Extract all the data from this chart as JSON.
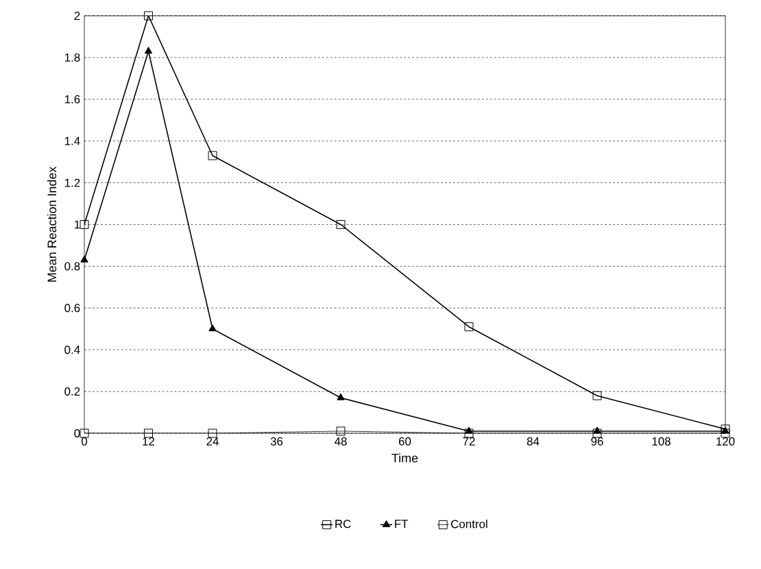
{
  "chart_data": {
    "type": "line",
    "xlabel": "Time",
    "ylabel": "Mean Reaction Index",
    "x": [
      0,
      12,
      24,
      48,
      72,
      96,
      120
    ],
    "series": [
      {
        "name": "RC",
        "color": "#000000",
        "marker": "square",
        "values": [
          1.0,
          2.0,
          1.33,
          1.0,
          0.51,
          0.18,
          0.02
        ]
      },
      {
        "name": "FT",
        "color": "#000000",
        "marker": "triangle",
        "values": [
          0.83,
          1.83,
          0.5,
          0.17,
          0.01,
          0.01,
          0.01
        ]
      },
      {
        "name": "Control",
        "color": "#000000",
        "marker": "square",
        "values": [
          0,
          0,
          0,
          0.01,
          0,
          0,
          0
        ]
      }
    ],
    "xlim": [
      0,
      120
    ],
    "xticks": [
      0,
      12,
      24,
      36,
      48,
      60,
      72,
      84,
      96,
      108,
      120
    ],
    "ylim": [
      0,
      2
    ],
    "yticks": [
      0,
      {
        "value": 0.2,
        "label": "0.2"
      },
      {
        "value": 0.4,
        "label": "0.4"
      },
      {
        "value": 0.6,
        "label": "0.6"
      },
      {
        "value": 0.8,
        "label": "0.8"
      },
      1,
      {
        "value": 1.2,
        "label": "1.2"
      },
      {
        "value": 1.4,
        "label": "1.4"
      },
      {
        "value": 1.6,
        "label": "1.6"
      },
      {
        "value": 1.8,
        "label": "1.8"
      },
      2
    ],
    "grid": "y",
    "legend": "bottom",
    "line_style": "solid"
  }
}
